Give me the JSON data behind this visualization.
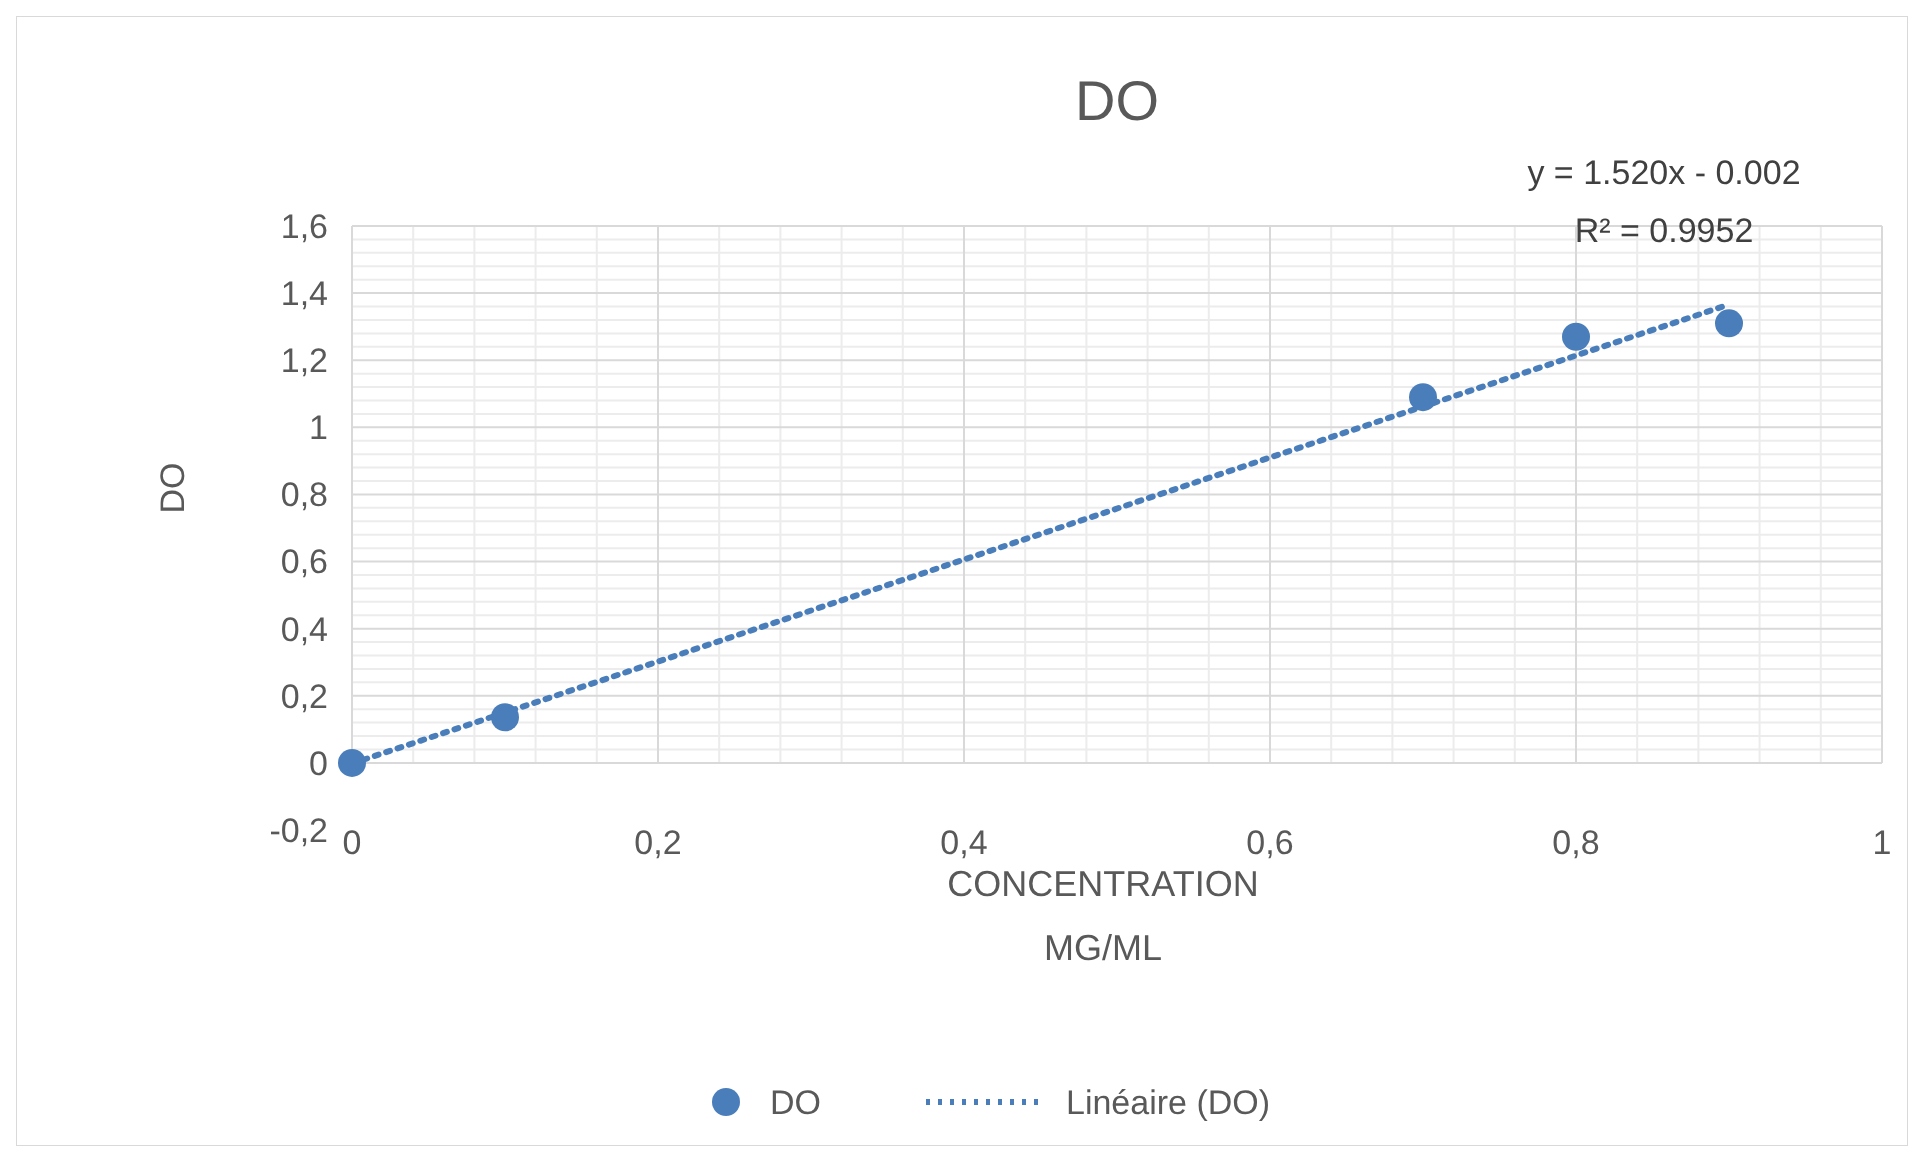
{
  "chart_data": {
    "type": "scatter",
    "title": "DO",
    "xlabel": "CONCENTRATION\nMG/ML",
    "ylabel": "DO",
    "xlim": [
      0,
      1
    ],
    "xticks": [
      0,
      {
        "value": 0.2,
        "label": "0,2"
      },
      {
        "value": 0.4,
        "label": "0,4"
      },
      {
        "value": 0.6,
        "label": "0,6"
      },
      {
        "value": 0.8,
        "label": "0,8"
      },
      1
    ],
    "ylim": [
      -0.2,
      1.6
    ],
    "yticks": [
      {
        "value": -0.2,
        "label": "-0,2"
      },
      0,
      {
        "value": 0.2,
        "label": "0,2"
      },
      {
        "value": 0.4,
        "label": "0,4"
      },
      {
        "value": 0.6,
        "label": "0,6"
      },
      {
        "value": 0.8,
        "label": "0,8"
      },
      1,
      {
        "value": 1.2,
        "label": "1,2"
      },
      {
        "value": 1.4,
        "label": "1,4"
      },
      {
        "value": 1.6,
        "label": "1,6"
      }
    ],
    "grid": true,
    "legend": "bottom",
    "annotations": [
      "y = 1.520x - 0.002",
      "R² = 0.9952"
    ],
    "series": [
      {
        "name": "DO",
        "color": "#4a7ebb",
        "marker": "circle",
        "x": [
          0,
          0.1,
          0.7,
          0.8,
          0.9
        ],
        "values": [
          0,
          0.136,
          1.09,
          1.27,
          1.31
        ]
      },
      {
        "name": "Linéaire (DO)",
        "type": "line",
        "color": "#4a7ebb",
        "line_style": "dotted",
        "x": [
          0,
          0.9
        ],
        "values": [
          -0.002,
          1.366
        ]
      }
    ]
  }
}
